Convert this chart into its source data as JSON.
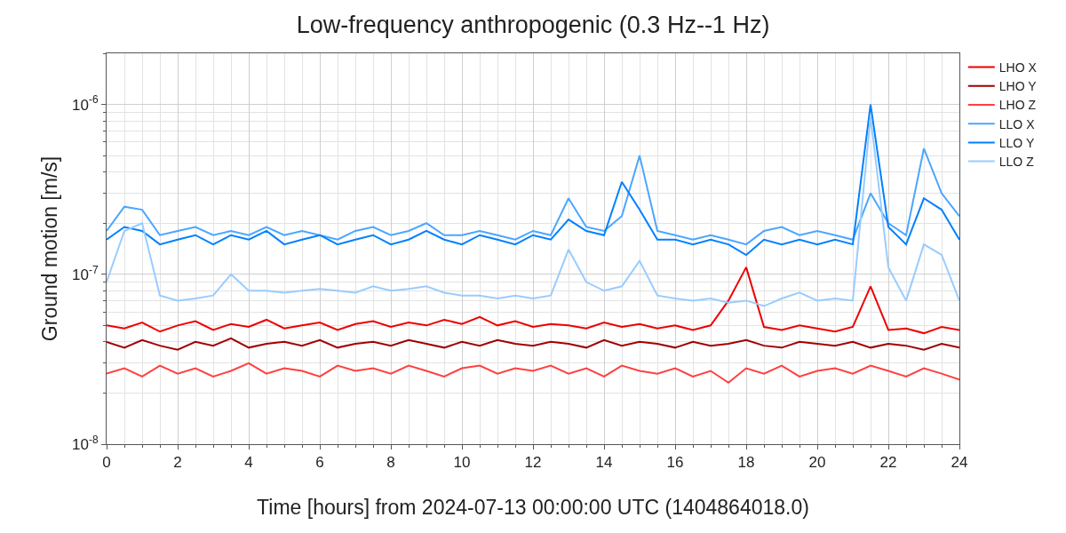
{
  "chart_data": {
    "type": "line",
    "title": "Low-frequency anthropogenic (0.3 Hz--1 Hz)",
    "xlabel": "Time [hours] from 2024-07-13 00:00:00 UTC (1404864018.0)",
    "ylabel": "Ground motion [m/s]",
    "x": [
      0,
      0.5,
      1,
      1.5,
      2,
      2.5,
      3,
      3.5,
      4,
      4.5,
      5,
      5.5,
      6,
      6.5,
      7,
      7.5,
      8,
      8.5,
      9,
      9.5,
      10,
      10.5,
      11,
      11.5,
      12,
      12.5,
      13,
      13.5,
      14,
      14.5,
      15,
      15.5,
      16,
      16.5,
      17,
      17.5,
      18,
      18.5,
      19,
      19.5,
      20,
      20.5,
      21,
      21.5,
      22,
      22.5,
      23,
      23.5,
      24
    ],
    "series": [
      {
        "name": "LHO X",
        "color": "#ee0000",
        "values": [
          5e-08,
          4.8e-08,
          5.2e-08,
          4.6e-08,
          5e-08,
          5.3e-08,
          4.7e-08,
          5.1e-08,
          4.9e-08,
          5.4e-08,
          4.8e-08,
          5e-08,
          5.2e-08,
          4.7e-08,
          5.1e-08,
          5.3e-08,
          4.9e-08,
          5.2e-08,
          5e-08,
          5.4e-08,
          5.1e-08,
          5.6e-08,
          5e-08,
          5.3e-08,
          4.9e-08,
          5.1e-08,
          5e-08,
          4.8e-08,
          5.2e-08,
          4.9e-08,
          5.1e-08,
          4.8e-08,
          5e-08,
          4.7e-08,
          5e-08,
          7e-08,
          1.1e-07,
          4.9e-08,
          4.7e-08,
          5e-08,
          4.8e-08,
          4.6e-08,
          4.9e-08,
          8.5e-08,
          4.7e-08,
          4.8e-08,
          4.5e-08,
          4.9e-08,
          4.7e-08
        ]
      },
      {
        "name": "LHO Y",
        "color": "#a00000",
        "values": [
          4e-08,
          3.7e-08,
          4.1e-08,
          3.8e-08,
          3.6e-08,
          4e-08,
          3.8e-08,
          4.2e-08,
          3.7e-08,
          3.9e-08,
          4e-08,
          3.8e-08,
          4.1e-08,
          3.7e-08,
          3.9e-08,
          4e-08,
          3.8e-08,
          4.1e-08,
          3.9e-08,
          3.7e-08,
          4e-08,
          3.8e-08,
          4.1e-08,
          3.9e-08,
          3.8e-08,
          4e-08,
          3.9e-08,
          3.7e-08,
          4.1e-08,
          3.8e-08,
          4e-08,
          3.9e-08,
          3.7e-08,
          4e-08,
          3.8e-08,
          3.9e-08,
          4.1e-08,
          3.8e-08,
          3.7e-08,
          4e-08,
          3.9e-08,
          3.8e-08,
          4e-08,
          3.7e-08,
          3.9e-08,
          3.8e-08,
          3.6e-08,
          3.9e-08,
          3.7e-08
        ]
      },
      {
        "name": "LHO Z",
        "color": "#ff4040",
        "values": [
          2.6e-08,
          2.8e-08,
          2.5e-08,
          2.9e-08,
          2.6e-08,
          2.8e-08,
          2.5e-08,
          2.7e-08,
          3e-08,
          2.6e-08,
          2.8e-08,
          2.7e-08,
          2.5e-08,
          2.9e-08,
          2.7e-08,
          2.8e-08,
          2.6e-08,
          2.9e-08,
          2.7e-08,
          2.5e-08,
          2.8e-08,
          2.9e-08,
          2.6e-08,
          2.8e-08,
          2.7e-08,
          2.9e-08,
          2.6e-08,
          2.8e-08,
          2.5e-08,
          2.9e-08,
          2.7e-08,
          2.6e-08,
          2.8e-08,
          2.5e-08,
          2.7e-08,
          2.3e-08,
          2.8e-08,
          2.6e-08,
          2.9e-08,
          2.5e-08,
          2.7e-08,
          2.8e-08,
          2.6e-08,
          2.9e-08,
          2.7e-08,
          2.5e-08,
          2.8e-08,
          2.6e-08,
          2.4e-08
        ]
      },
      {
        "name": "LLO X",
        "color": "#4ba6ff",
        "values": [
          1.8e-07,
          2.5e-07,
          2.4e-07,
          1.7e-07,
          1.8e-07,
          1.9e-07,
          1.7e-07,
          1.8e-07,
          1.7e-07,
          1.9e-07,
          1.7e-07,
          1.8e-07,
          1.7e-07,
          1.6e-07,
          1.8e-07,
          1.9e-07,
          1.7e-07,
          1.8e-07,
          2e-07,
          1.7e-07,
          1.7e-07,
          1.8e-07,
          1.7e-07,
          1.6e-07,
          1.8e-07,
          1.7e-07,
          2.8e-07,
          1.9e-07,
          1.8e-07,
          2.2e-07,
          5e-07,
          1.8e-07,
          1.7e-07,
          1.6e-07,
          1.7e-07,
          1.6e-07,
          1.5e-07,
          1.8e-07,
          1.9e-07,
          1.7e-07,
          1.8e-07,
          1.7e-07,
          1.6e-07,
          3e-07,
          2e-07,
          1.7e-07,
          5.5e-07,
          3e-07,
          2.2e-07
        ]
      },
      {
        "name": "LLO Y",
        "color": "#0080ff",
        "values": [
          1.6e-07,
          1.9e-07,
          1.8e-07,
          1.5e-07,
          1.6e-07,
          1.7e-07,
          1.5e-07,
          1.7e-07,
          1.6e-07,
          1.8e-07,
          1.5e-07,
          1.6e-07,
          1.7e-07,
          1.5e-07,
          1.6e-07,
          1.7e-07,
          1.5e-07,
          1.6e-07,
          1.8e-07,
          1.6e-07,
          1.5e-07,
          1.7e-07,
          1.6e-07,
          1.5e-07,
          1.7e-07,
          1.6e-07,
          2.1e-07,
          1.8e-07,
          1.7e-07,
          3.5e-07,
          2.4e-07,
          1.6e-07,
          1.6e-07,
          1.5e-07,
          1.6e-07,
          1.5e-07,
          1.3e-07,
          1.6e-07,
          1.5e-07,
          1.6e-07,
          1.5e-07,
          1.6e-07,
          1.5e-07,
          1e-06,
          1.9e-07,
          1.5e-07,
          2.8e-07,
          2.4e-07,
          1.6e-07
        ]
      },
      {
        "name": "LLO Z",
        "color": "#99ccff",
        "values": [
          9e-08,
          1.8e-07,
          2e-07,
          7.5e-08,
          7e-08,
          7.2e-08,
          7.5e-08,
          1e-07,
          8e-08,
          8e-08,
          7.8e-08,
          8e-08,
          8.2e-08,
          8e-08,
          7.8e-08,
          8.5e-08,
          8e-08,
          8.2e-08,
          8.5e-08,
          7.8e-08,
          7.5e-08,
          7.5e-08,
          7.2e-08,
          7.5e-08,
          7.2e-08,
          7.5e-08,
          1.4e-07,
          9e-08,
          8e-08,
          8.5e-08,
          1.2e-07,
          7.5e-08,
          7.2e-08,
          7e-08,
          7.2e-08,
          6.8e-08,
          7e-08,
          6.5e-08,
          7.2e-08,
          7.8e-08,
          7e-08,
          7.2e-08,
          7e-08,
          8.5e-07,
          1.1e-07,
          7e-08,
          1.5e-07,
          1.3e-07,
          7e-08
        ]
      }
    ],
    "xlim": [
      0,
      24
    ],
    "xticks": [
      0,
      2,
      4,
      6,
      8,
      10,
      12,
      14,
      16,
      18,
      20,
      22,
      24
    ],
    "ylim": [
      1e-08,
      2e-06
    ],
    "yticks": [
      {
        "value": 1e-08,
        "label": "10$^{-8}$"
      },
      {
        "value": 1e-07,
        "label": "10$^{-7}$"
      },
      {
        "value": 1e-06,
        "label": "10$^{-6}$"
      }
    ],
    "log": "y",
    "grid": true,
    "legend": "top right",
    "line_style": "solid",
    "marker": "none"
  }
}
